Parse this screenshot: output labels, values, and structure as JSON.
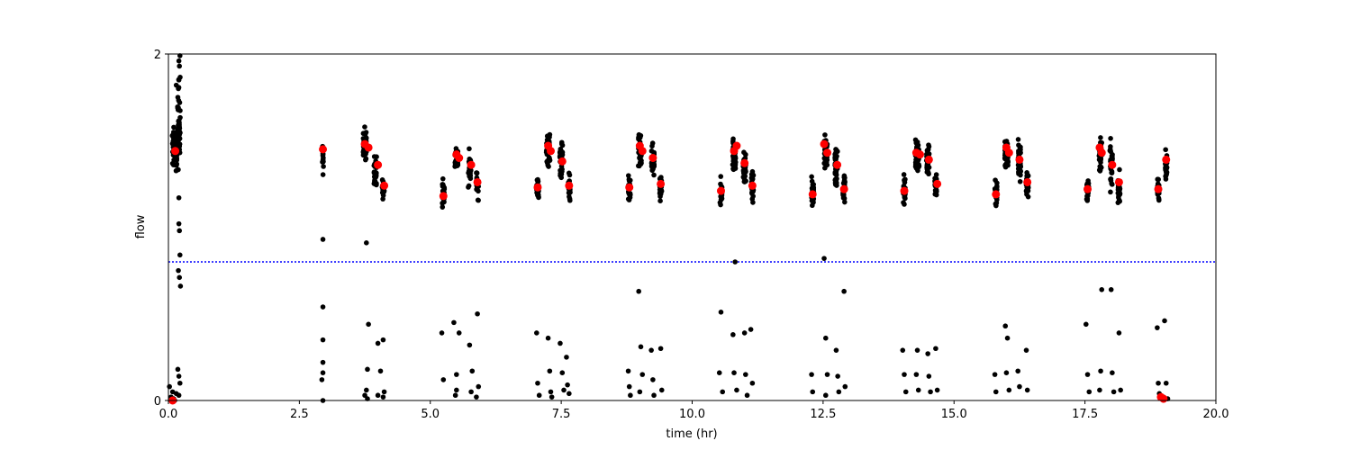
{
  "chart_data": {
    "type": "scatter",
    "xlabel": "time (hr)",
    "ylabel": "flow",
    "xlim": [
      0,
      20
    ],
    "ylim": [
      0,
      2
    ],
    "xticks": [
      0.0,
      2.5,
      5.0,
      7.5,
      10.0,
      12.5,
      15.0,
      17.5,
      20.0
    ],
    "xtick_labels": [
      "0.0",
      "2.5",
      "5.0",
      "7.5",
      "10.0",
      "12.5",
      "15.0",
      "17.5",
      "20.0"
    ],
    "yticks": [
      0,
      2
    ],
    "ytick_labels": [
      "0",
      "2"
    ],
    "grid": false,
    "threshold": {
      "y": 0.8,
      "color": "#0000ff",
      "style": "dotted"
    },
    "series": [
      {
        "marker_color": "#000000",
        "clusters": [
          {
            "x": 0.12,
            "center": 1.45,
            "spread": 0.12,
            "n": 60,
            "xw": 0.1
          },
          {
            "x": 0.2,
            "center": 1.6,
            "spread": 0.25,
            "n": 40,
            "xw": 0.05
          },
          {
            "x": 2.95,
            "center": 1.4,
            "spread": 0.1,
            "n": 12,
            "xw": 0.02
          },
          {
            "x": 3.75,
            "center": 1.47,
            "spread": 0.1,
            "n": 40,
            "xw": 0.06
          },
          {
            "x": 3.95,
            "center": 1.33,
            "spread": 0.08,
            "n": 30,
            "xw": 0.05
          },
          {
            "x": 4.1,
            "center": 1.22,
            "spread": 0.08,
            "n": 25,
            "xw": 0.04
          },
          {
            "x": 5.25,
            "center": 1.2,
            "spread": 0.08,
            "n": 25,
            "xw": 0.04
          },
          {
            "x": 5.5,
            "center": 1.4,
            "spread": 0.07,
            "n": 35,
            "xw": 0.06
          },
          {
            "x": 5.75,
            "center": 1.33,
            "spread": 0.1,
            "n": 30,
            "xw": 0.05
          },
          {
            "x": 5.9,
            "center": 1.25,
            "spread": 0.08,
            "n": 25,
            "xw": 0.04
          },
          {
            "x": 7.05,
            "center": 1.23,
            "spread": 0.08,
            "n": 25,
            "xw": 0.04
          },
          {
            "x": 7.25,
            "center": 1.45,
            "spread": 0.1,
            "n": 45,
            "xw": 0.07
          },
          {
            "x": 7.5,
            "center": 1.38,
            "spread": 0.12,
            "n": 35,
            "xw": 0.05
          },
          {
            "x": 7.65,
            "center": 1.23,
            "spread": 0.08,
            "n": 25,
            "xw": 0.04
          },
          {
            "x": 8.8,
            "center": 1.22,
            "spread": 0.08,
            "n": 25,
            "xw": 0.04
          },
          {
            "x": 9.0,
            "center": 1.42,
            "spread": 0.1,
            "n": 40,
            "xw": 0.06
          },
          {
            "x": 9.25,
            "center": 1.37,
            "spread": 0.1,
            "n": 35,
            "xw": 0.05
          },
          {
            "x": 9.4,
            "center": 1.23,
            "spread": 0.08,
            "n": 25,
            "xw": 0.04
          },
          {
            "x": 10.55,
            "center": 1.2,
            "spread": 0.08,
            "n": 25,
            "xw": 0.04
          },
          {
            "x": 10.8,
            "center": 1.42,
            "spread": 0.1,
            "n": 40,
            "xw": 0.06
          },
          {
            "x": 11.0,
            "center": 1.33,
            "spread": 0.1,
            "n": 30,
            "xw": 0.05
          },
          {
            "x": 11.15,
            "center": 1.23,
            "spread": 0.08,
            "n": 25,
            "xw": 0.04
          },
          {
            "x": 12.3,
            "center": 1.2,
            "spread": 0.08,
            "n": 25,
            "xw": 0.04
          },
          {
            "x": 12.55,
            "center": 1.43,
            "spread": 0.1,
            "n": 40,
            "xw": 0.06
          },
          {
            "x": 12.75,
            "center": 1.35,
            "spread": 0.12,
            "n": 35,
            "xw": 0.05
          },
          {
            "x": 12.9,
            "center": 1.22,
            "spread": 0.08,
            "n": 25,
            "xw": 0.04
          },
          {
            "x": 14.05,
            "center": 1.22,
            "spread": 0.08,
            "n": 25,
            "xw": 0.04
          },
          {
            "x": 14.3,
            "center": 1.42,
            "spread": 0.1,
            "n": 45,
            "xw": 0.07
          },
          {
            "x": 14.5,
            "center": 1.38,
            "spread": 0.12,
            "n": 35,
            "xw": 0.05
          },
          {
            "x": 14.65,
            "center": 1.25,
            "spread": 0.08,
            "n": 25,
            "xw": 0.04
          },
          {
            "x": 15.8,
            "center": 1.2,
            "spread": 0.08,
            "n": 25,
            "xw": 0.04
          },
          {
            "x": 16.0,
            "center": 1.42,
            "spread": 0.1,
            "n": 45,
            "xw": 0.06
          },
          {
            "x": 16.25,
            "center": 1.38,
            "spread": 0.12,
            "n": 35,
            "xw": 0.05
          },
          {
            "x": 16.4,
            "center": 1.25,
            "spread": 0.08,
            "n": 25,
            "xw": 0.04
          },
          {
            "x": 17.55,
            "center": 1.22,
            "spread": 0.08,
            "n": 25,
            "xw": 0.04
          },
          {
            "x": 17.8,
            "center": 1.42,
            "spread": 0.1,
            "n": 40,
            "xw": 0.06
          },
          {
            "x": 18.0,
            "center": 1.35,
            "spread": 0.12,
            "n": 35,
            "xw": 0.05
          },
          {
            "x": 18.15,
            "center": 1.23,
            "spread": 0.08,
            "n": 25,
            "xw": 0.04
          },
          {
            "x": 18.9,
            "center": 1.22,
            "spread": 0.08,
            "n": 20,
            "xw": 0.03
          },
          {
            "x": 19.05,
            "center": 1.33,
            "spread": 0.1,
            "n": 25,
            "xw": 0.03
          }
        ],
        "points": [
          [
            0.02,
            0.08
          ],
          [
            0.05,
            0.02
          ],
          [
            0.08,
            0.05
          ],
          [
            0.1,
            0.01
          ],
          [
            0.15,
            0.04
          ],
          [
            0.18,
            0.18
          ],
          [
            0.2,
            0.14
          ],
          [
            0.22,
            0.1
          ],
          [
            0.2,
            0.03
          ],
          [
            0.12,
            0.0
          ],
          [
            0.19,
            1.8
          ],
          [
            0.2,
            1.85
          ],
          [
            0.21,
            1.93
          ],
          [
            0.2,
            1.96
          ],
          [
            0.22,
            1.99
          ],
          [
            0.18,
            1.75
          ],
          [
            0.15,
            1.82
          ],
          [
            0.2,
            1.17
          ],
          [
            0.2,
            1.02
          ],
          [
            0.21,
            0.98
          ],
          [
            0.22,
            0.84
          ],
          [
            0.19,
            0.75
          ],
          [
            0.21,
            0.71
          ],
          [
            0.23,
            0.66
          ],
          [
            2.95,
            0.93
          ],
          [
            2.95,
            0.54
          ],
          [
            2.95,
            0.35
          ],
          [
            2.95,
            0.22
          ],
          [
            2.95,
            0.16
          ],
          [
            2.93,
            0.12
          ],
          [
            2.95,
            0.0
          ],
          [
            3.78,
            0.91
          ],
          [
            3.82,
            0.44
          ],
          [
            3.8,
            0.18
          ],
          [
            3.78,
            0.06
          ],
          [
            3.75,
            0.03
          ],
          [
            3.8,
            0.01
          ],
          [
            4.0,
            0.33
          ],
          [
            4.05,
            0.17
          ],
          [
            4.0,
            0.03
          ],
          [
            4.1,
            0.35
          ],
          [
            4.12,
            0.05
          ],
          [
            4.1,
            0.02
          ],
          [
            5.22,
            0.39
          ],
          [
            5.25,
            0.12
          ],
          [
            5.45,
            0.45
          ],
          [
            5.5,
            0.15
          ],
          [
            5.5,
            0.06
          ],
          [
            5.48,
            0.03
          ],
          [
            5.55,
            0.39
          ],
          [
            5.75,
            0.32
          ],
          [
            5.8,
            0.17
          ],
          [
            5.78,
            0.05
          ],
          [
            5.9,
            0.5
          ],
          [
            5.92,
            0.08
          ],
          [
            5.88,
            0.02
          ],
          [
            7.03,
            0.39
          ],
          [
            7.05,
            0.1
          ],
          [
            7.08,
            0.03
          ],
          [
            7.25,
            0.36
          ],
          [
            7.28,
            0.17
          ],
          [
            7.3,
            0.05
          ],
          [
            7.32,
            0.02
          ],
          [
            7.48,
            0.33
          ],
          [
            7.52,
            0.16
          ],
          [
            7.55,
            0.06
          ],
          [
            7.6,
            0.25
          ],
          [
            7.62,
            0.09
          ],
          [
            7.65,
            0.04
          ],
          [
            8.78,
            0.17
          ],
          [
            8.8,
            0.08
          ],
          [
            8.82,
            0.03
          ],
          [
            8.98,
            0.63
          ],
          [
            9.02,
            0.31
          ],
          [
            9.05,
            0.15
          ],
          [
            9.0,
            0.05
          ],
          [
            9.22,
            0.29
          ],
          [
            9.25,
            0.12
          ],
          [
            9.27,
            0.03
          ],
          [
            9.4,
            0.3
          ],
          [
            9.42,
            0.06
          ],
          [
            10.55,
            0.51
          ],
          [
            10.52,
            0.16
          ],
          [
            10.58,
            0.05
          ],
          [
            10.78,
            0.38
          ],
          [
            10.82,
            0.8
          ],
          [
            10.8,
            0.16
          ],
          [
            10.85,
            0.06
          ],
          [
            11.0,
            0.39
          ],
          [
            11.02,
            0.15
          ],
          [
            11.05,
            0.03
          ],
          [
            11.12,
            0.41
          ],
          [
            11.15,
            0.1
          ],
          [
            12.28,
            0.15
          ],
          [
            12.3,
            0.05
          ],
          [
            12.52,
            0.82
          ],
          [
            12.55,
            0.36
          ],
          [
            12.58,
            0.15
          ],
          [
            12.55,
            0.03
          ],
          [
            12.75,
            0.29
          ],
          [
            12.78,
            0.14
          ],
          [
            12.8,
            0.05
          ],
          [
            12.9,
            0.63
          ],
          [
            12.92,
            0.08
          ],
          [
            14.02,
            0.29
          ],
          [
            14.05,
            0.15
          ],
          [
            14.08,
            0.05
          ],
          [
            14.3,
            0.29
          ],
          [
            14.28,
            0.15
          ],
          [
            14.32,
            0.06
          ],
          [
            14.5,
            0.27
          ],
          [
            14.52,
            0.14
          ],
          [
            14.55,
            0.05
          ],
          [
            14.65,
            0.3
          ],
          [
            14.68,
            0.06
          ],
          [
            15.78,
            0.15
          ],
          [
            15.8,
            0.05
          ],
          [
            15.98,
            0.43
          ],
          [
            16.02,
            0.36
          ],
          [
            16.0,
            0.16
          ],
          [
            16.05,
            0.06
          ],
          [
            16.22,
            0.17
          ],
          [
            16.25,
            0.08
          ],
          [
            16.38,
            0.29
          ],
          [
            16.4,
            0.06
          ],
          [
            17.52,
            0.44
          ],
          [
            17.55,
            0.15
          ],
          [
            17.58,
            0.05
          ],
          [
            17.82,
            0.64
          ],
          [
            17.8,
            0.17
          ],
          [
            17.78,
            0.06
          ],
          [
            18.0,
            0.64
          ],
          [
            18.02,
            0.16
          ],
          [
            18.05,
            0.05
          ],
          [
            18.15,
            0.39
          ],
          [
            18.18,
            0.06
          ],
          [
            18.88,
            0.42
          ],
          [
            18.9,
            0.1
          ],
          [
            18.92,
            0.04
          ],
          [
            19.02,
            0.46
          ],
          [
            19.05,
            0.1
          ],
          [
            19.0,
            0.02
          ],
          [
            19.08,
            0.01
          ]
        ]
      },
      {
        "marker_color": "#ff0000",
        "points": [
          [
            0.13,
            1.44
          ],
          [
            0.08,
            0.0
          ],
          [
            2.95,
            1.45
          ],
          [
            3.75,
            1.48
          ],
          [
            3.82,
            1.46
          ],
          [
            4.0,
            1.36
          ],
          [
            4.12,
            1.24
          ],
          [
            5.25,
            1.18
          ],
          [
            5.5,
            1.42
          ],
          [
            5.55,
            1.4
          ],
          [
            5.78,
            1.36
          ],
          [
            5.9,
            1.26
          ],
          [
            7.05,
            1.23
          ],
          [
            7.25,
            1.47
          ],
          [
            7.3,
            1.44
          ],
          [
            7.52,
            1.38
          ],
          [
            7.65,
            1.24
          ],
          [
            8.8,
            1.23
          ],
          [
            9.0,
            1.47
          ],
          [
            9.05,
            1.44
          ],
          [
            9.25,
            1.4
          ],
          [
            9.4,
            1.25
          ],
          [
            10.55,
            1.21
          ],
          [
            10.8,
            1.44
          ],
          [
            10.85,
            1.47
          ],
          [
            11.0,
            1.37
          ],
          [
            11.15,
            1.24
          ],
          [
            12.3,
            1.19
          ],
          [
            12.52,
            1.48
          ],
          [
            12.58,
            1.43
          ],
          [
            12.77,
            1.36
          ],
          [
            12.9,
            1.22
          ],
          [
            14.05,
            1.21
          ],
          [
            14.28,
            1.43
          ],
          [
            14.35,
            1.42
          ],
          [
            14.52,
            1.39
          ],
          [
            14.68,
            1.25
          ],
          [
            15.8,
            1.19
          ],
          [
            16.0,
            1.46
          ],
          [
            16.05,
            1.43
          ],
          [
            16.25,
            1.39
          ],
          [
            16.4,
            1.26
          ],
          [
            17.55,
            1.22
          ],
          [
            17.78,
            1.46
          ],
          [
            17.82,
            1.43
          ],
          [
            18.02,
            1.36
          ],
          [
            18.15,
            1.26
          ],
          [
            18.9,
            1.22
          ],
          [
            19.05,
            1.39
          ],
          [
            18.95,
            0.02
          ],
          [
            19.0,
            0.01
          ]
        ]
      }
    ]
  }
}
